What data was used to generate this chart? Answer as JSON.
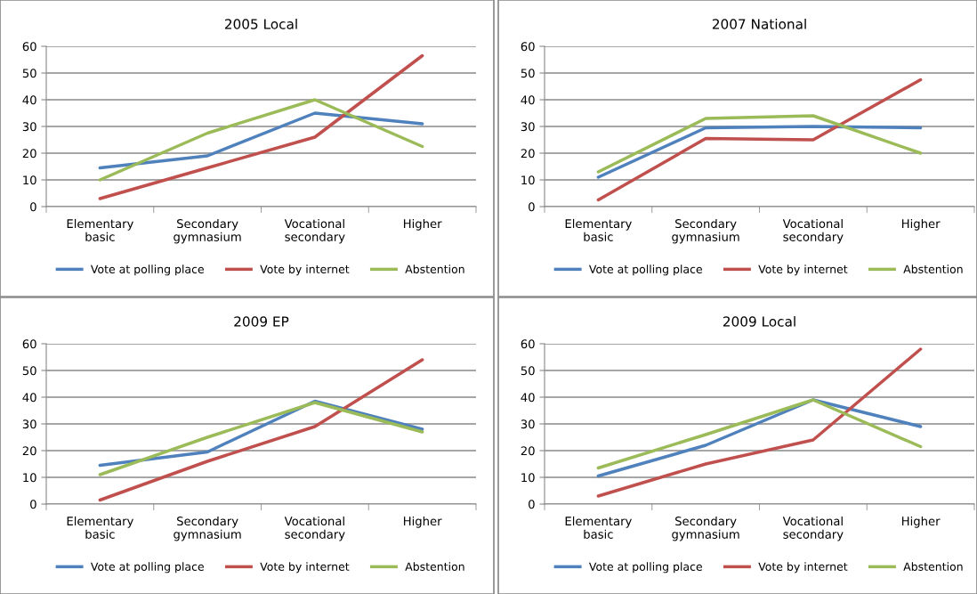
{
  "chart_data": [
    {
      "type": "line",
      "title": "2005 Local",
      "categories": [
        "Elementary\nbasic",
        "Secondary\ngymnasium",
        "Vocational\nsecondary",
        "Higher"
      ],
      "ylim": [
        0,
        60
      ],
      "yticks": [
        0,
        10,
        20,
        30,
        40,
        50,
        60
      ],
      "grid": "y",
      "legend": "bottom",
      "marker": "none",
      "line_style": "solid",
      "series": [
        {
          "name": "Vote at polling place",
          "color": "#4f81bd",
          "values": [
            14.5,
            19,
            35,
            31
          ]
        },
        {
          "name": "Vote by internet",
          "color": "#c0504d",
          "values": [
            3,
            14.5,
            26,
            56.5
          ]
        },
        {
          "name": "Abstention",
          "color": "#9bbb59",
          "values": [
            10,
            27.5,
            40,
            22.5
          ]
        }
      ]
    },
    {
      "type": "line",
      "title": "2007 National",
      "categories": [
        "Elementary\nbasic",
        "Secondary\ngymnasium",
        "Vocational\nsecondary",
        "Higher"
      ],
      "ylim": [
        0,
        60
      ],
      "yticks": [
        0,
        10,
        20,
        30,
        40,
        50,
        60
      ],
      "grid": "y",
      "legend": "bottom",
      "marker": "none",
      "line_style": "solid",
      "series": [
        {
          "name": "Vote at polling place",
          "color": "#4f81bd",
          "values": [
            11,
            29.5,
            30,
            29.5
          ]
        },
        {
          "name": "Vote by internet",
          "color": "#c0504d",
          "values": [
            2.5,
            25.5,
            25,
            47.5
          ]
        },
        {
          "name": "Abstention",
          "color": "#9bbb59",
          "values": [
            13,
            33,
            34,
            20
          ]
        }
      ]
    },
    {
      "type": "line",
      "title": "2009 EP",
      "categories": [
        "Elementary\nbasic",
        "Secondary\ngymnasium",
        "Vocational\nsecondary",
        "Higher"
      ],
      "ylim": [
        0,
        60
      ],
      "yticks": [
        0,
        10,
        20,
        30,
        40,
        50,
        60
      ],
      "grid": "y",
      "legend": "bottom",
      "marker": "none",
      "line_style": "solid",
      "series": [
        {
          "name": "Vote at polling place",
          "color": "#4f81bd",
          "values": [
            14.5,
            19.5,
            38.5,
            28
          ]
        },
        {
          "name": "Vote by internet",
          "color": "#c0504d",
          "values": [
            1.5,
            16,
            29,
            54
          ]
        },
        {
          "name": "Abstention",
          "color": "#9bbb59",
          "values": [
            11,
            25,
            38,
            27
          ]
        }
      ]
    },
    {
      "type": "line",
      "title": "2009 Local",
      "categories": [
        "Elementary\nbasic",
        "Secondary\ngymnasium",
        "Vocational\nsecondary",
        "Higher"
      ],
      "ylim": [
        0,
        60
      ],
      "yticks": [
        0,
        10,
        20,
        30,
        40,
        50,
        60
      ],
      "grid": "y",
      "legend": "bottom",
      "marker": "none",
      "line_style": "solid",
      "series": [
        {
          "name": "Vote at polling place",
          "color": "#4f81bd",
          "values": [
            10.5,
            22,
            39,
            29
          ]
        },
        {
          "name": "Vote by internet",
          "color": "#c0504d",
          "values": [
            3,
            15,
            24,
            58
          ]
        },
        {
          "name": "Abstention",
          "color": "#9bbb59",
          "values": [
            13.5,
            26,
            39,
            21.5
          ]
        }
      ]
    }
  ]
}
